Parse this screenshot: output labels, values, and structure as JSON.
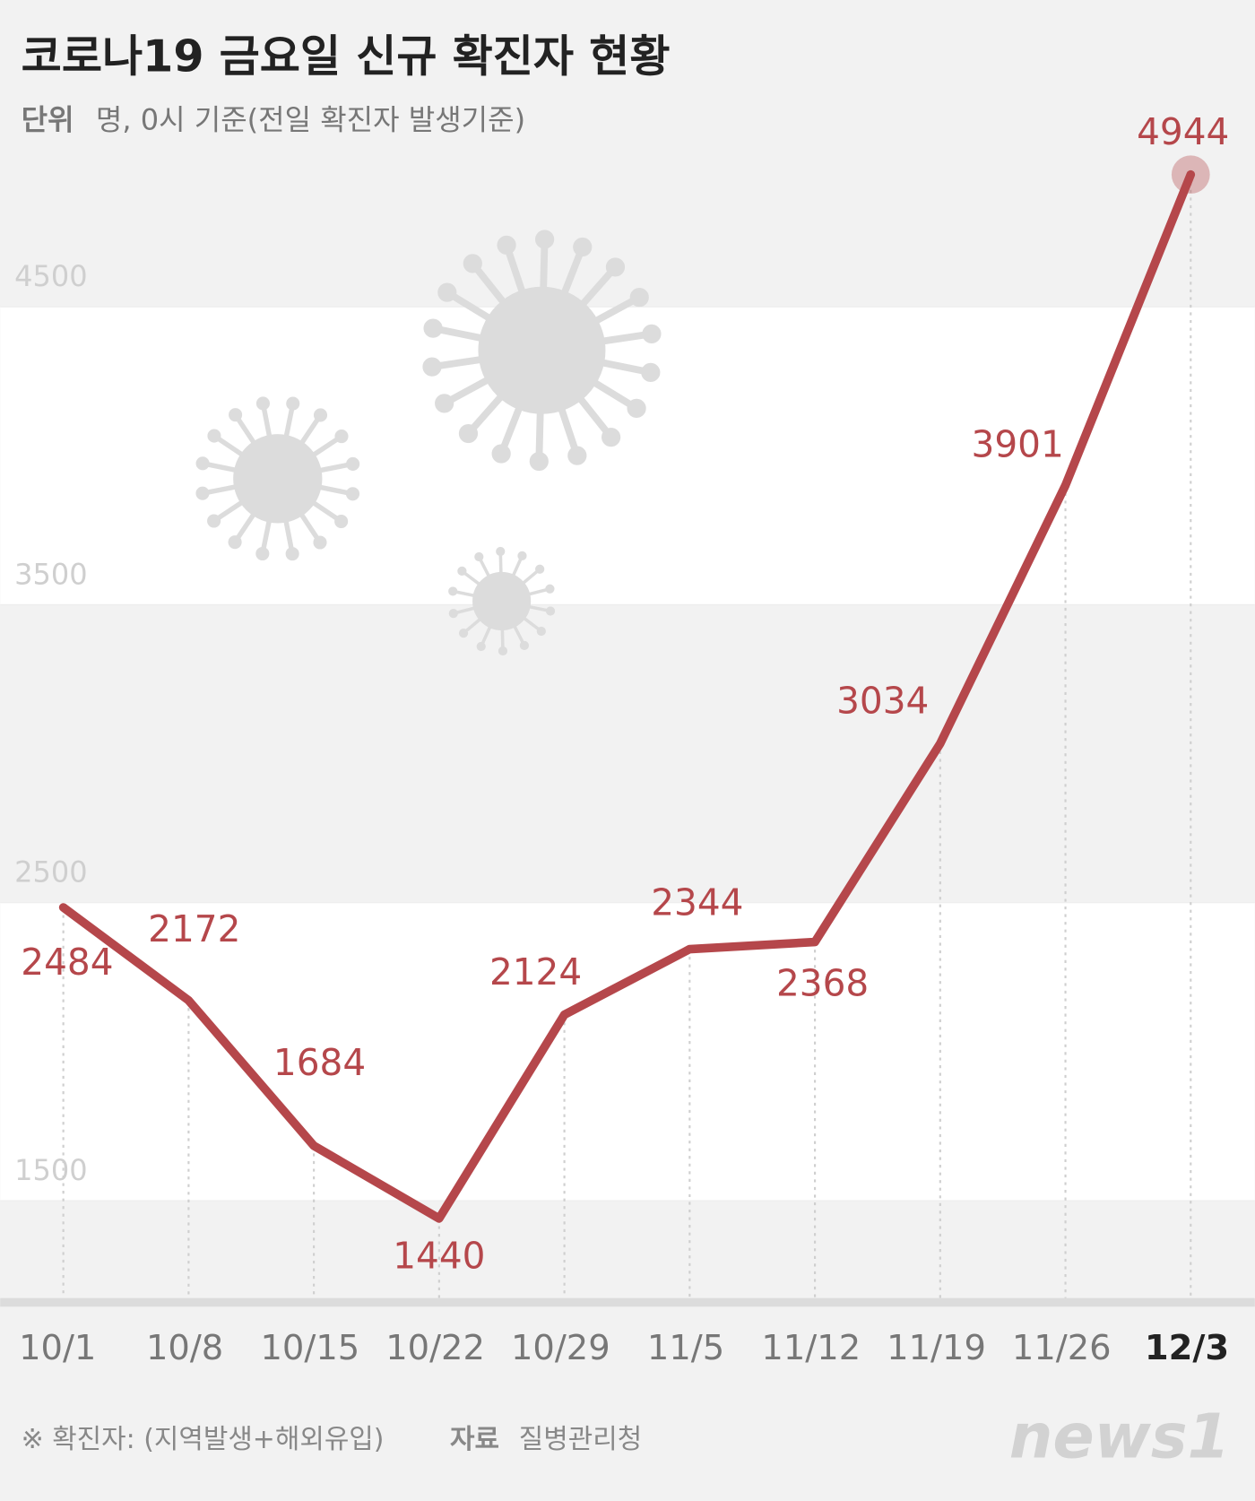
{
  "chart_data": {
    "type": "line",
    "title": "코로나19 금요일 신규 확진자 현황",
    "unit_label": "단위",
    "subtitle": "명, 0시 기준(전일 확진자 발생기준)",
    "categories": [
      "10/1",
      "10/8",
      "10/15",
      "10/22",
      "10/29",
      "11/5",
      "11/12",
      "11/19",
      "11/26",
      "12/3"
    ],
    "series": [
      {
        "name": "신규 확진자",
        "color": "#b5474b",
        "values": [
          2484,
          2172,
          1684,
          1440,
          2124,
          2344,
          2368,
          3034,
          3901,
          4944
        ]
      }
    ],
    "ylim": [
      1160,
      5530
    ],
    "yticks": [
      1500,
      2500,
      3500,
      4500
    ],
    "note": "※ 확진자: (지역발생+해외유입)",
    "source_label": "자료",
    "source": "질병관리청",
    "logo": "news1"
  }
}
